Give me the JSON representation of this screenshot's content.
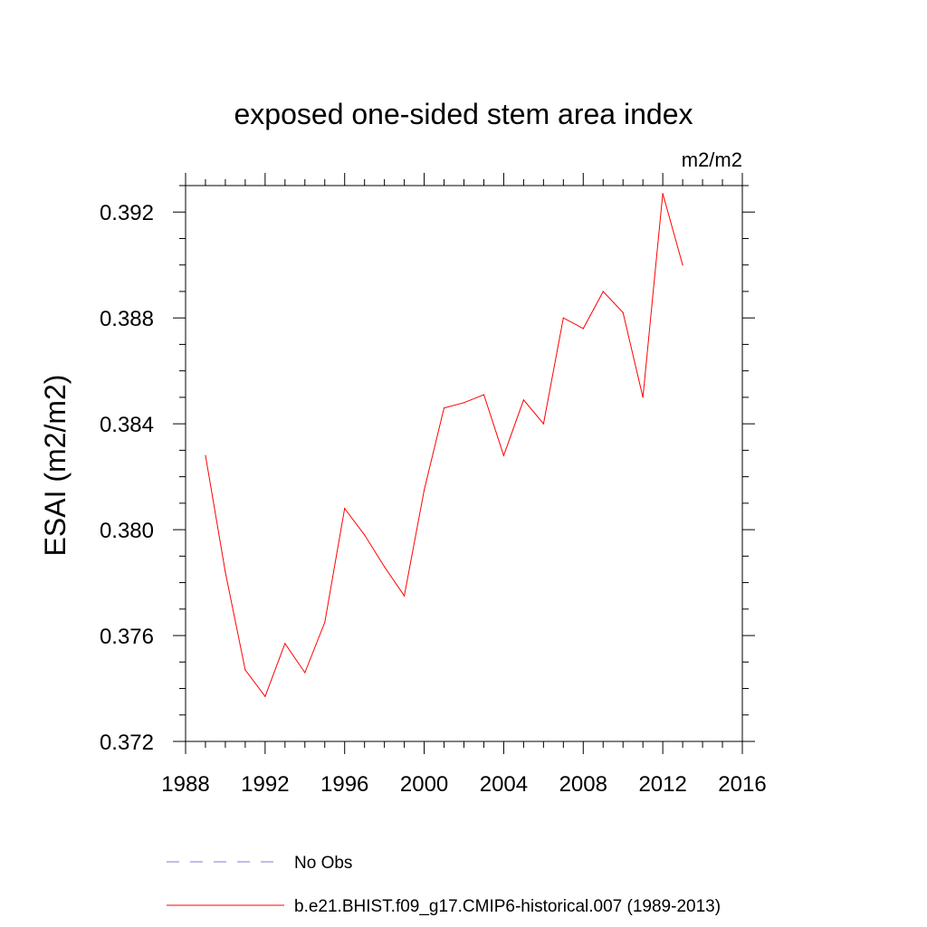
{
  "chart_data": {
    "type": "line",
    "title": "exposed one-sided stem area index",
    "units": "m2/m2",
    "ylabel": "ESAI  (m2/m2)",
    "xlim": [
      1988,
      2016
    ],
    "ylim": [
      0.372,
      0.393
    ],
    "x_ticks": [
      "1988",
      "1992",
      "1996",
      "2000",
      "2004",
      "2008",
      "2012",
      "2016"
    ],
    "y_ticks": [
      "0.372",
      "0.376",
      "0.380",
      "0.384",
      "0.388",
      "0.392"
    ],
    "grid": false,
    "legend_position": "bottom",
    "series": [
      {
        "name": "b.e21.BHIST.f09_g17.CMIP6-historical.007 (1989-2013)",
        "color": "#ff0000",
        "style": "solid",
        "x": [
          1989,
          1990,
          1991,
          1992,
          1993,
          1994,
          1995,
          1996,
          1997,
          1998,
          1999,
          2000,
          2001,
          2002,
          2003,
          2004,
          2005,
          2006,
          2007,
          2008,
          2009,
          2010,
          2011,
          2012,
          2013
        ],
        "values": [
          0.3828,
          0.3784,
          0.3747,
          0.3737,
          0.3757,
          0.3746,
          0.3765,
          0.3808,
          0.3798,
          0.3786,
          0.3775,
          0.3815,
          0.3846,
          0.3848,
          0.3851,
          0.3828,
          0.3849,
          0.384,
          0.388,
          0.3876,
          0.389,
          0.3882,
          0.385,
          0.3927,
          0.39
        ]
      }
    ],
    "legend": [
      {
        "label": "No Obs",
        "color": "#7b7bd6",
        "style": "dashed"
      },
      {
        "label": "b.e21.BHIST.f09_g17.CMIP6-historical.007 (1989-2013)",
        "color": "#ff0000",
        "style": "solid"
      }
    ]
  }
}
